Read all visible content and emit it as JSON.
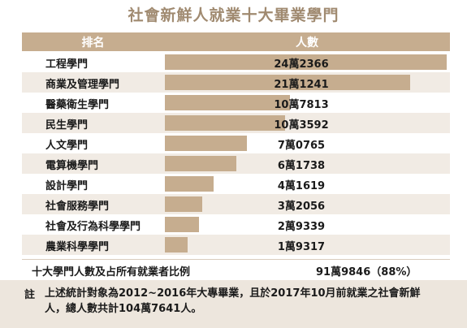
{
  "title": "社會新鮮人就業十大畢業學門",
  "colors": {
    "accent": "#c6ad8f",
    "title": "#a08a70",
    "row_alt": "#f1ebe4",
    "note_bg": "#ede6dd"
  },
  "chart_data": {
    "type": "bar",
    "orientation": "horizontal",
    "title": "社會新鮮人就業十大畢業學門",
    "column_headers": [
      "排名",
      "人數"
    ],
    "categories": [
      "工程學門",
      "商業及管理學門",
      "醫藥衛生學門",
      "民生學門",
      "人文學門",
      "電算機學門",
      "設計學門",
      "社會服務學門",
      "社會及行為科學學門",
      "農業科學學門"
    ],
    "values": [
      242366,
      211241,
      107813,
      103592,
      70765,
      61738,
      41619,
      32056,
      29339,
      19317
    ],
    "value_labels": [
      "24萬2366",
      "21萬1241",
      "10萬7813",
      "10萬3592",
      "7萬0765",
      "6萬1738",
      "4萬1619",
      "3萬2056",
      "2萬9339",
      "1萬9317"
    ]
  },
  "total": {
    "label": "十大學門人數及占所有就業者比例",
    "value": "91萬9846（88%）"
  },
  "note": {
    "mark": "註",
    "text": "上述統計對象為2012~2016年大專畢業，且於2017年10月前就業之社會新鮮人，總人數共計104萬7641人。"
  }
}
